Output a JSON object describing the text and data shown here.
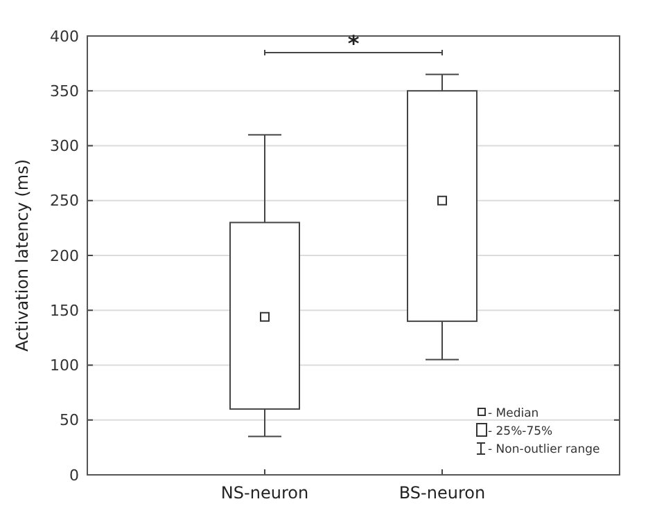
{
  "chart_data": {
    "type": "box",
    "ylabel": "Activation latency (ms)",
    "categories": [
      "NS-neuron",
      "BS-neuron"
    ],
    "boxes": [
      {
        "low": 35,
        "q1": 60,
        "median": 144,
        "q3": 230,
        "high": 310
      },
      {
        "low": 105,
        "q1": 140,
        "median": 250,
        "q3": 350,
        "high": 365
      }
    ],
    "ylim": [
      0,
      400
    ],
    "yticks": [
      0,
      50,
      100,
      150,
      200,
      250,
      300,
      350,
      400
    ],
    "grid": "y",
    "color": "#ffffff",
    "annotations": [
      "*",
      "- Median",
      "- 25%-75%",
      "- Non-outlier range"
    ]
  }
}
